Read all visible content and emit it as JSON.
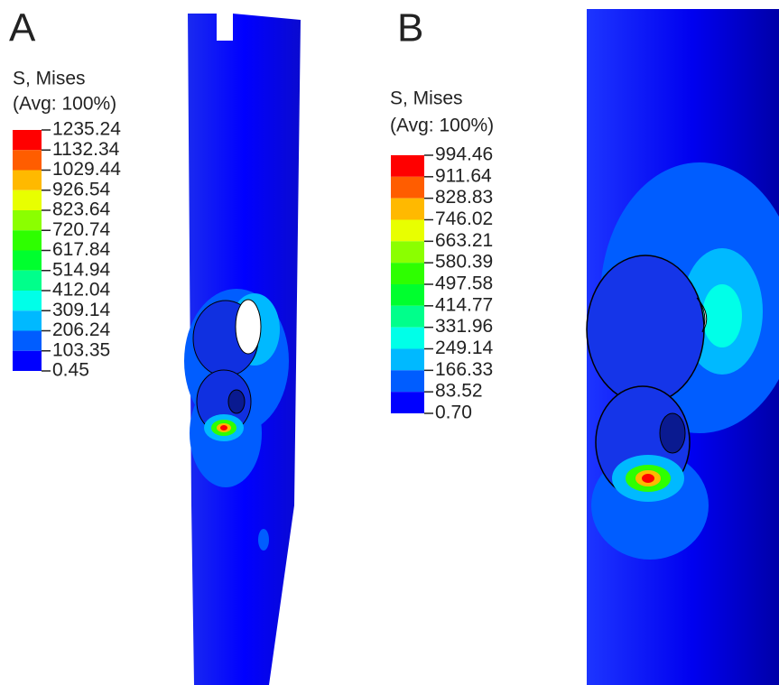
{
  "panels": [
    {
      "label": "A",
      "legend": {
        "title": "S, Mises",
        "subtitle": "(Avg: 100%)",
        "levels": [
          "1235.24",
          "1132.34",
          "1029.44",
          "926.54",
          "823.64",
          "720.74",
          "617.84",
          "514.94",
          "412.04",
          "309.14",
          "206.24",
          "103.35",
          "0.45"
        ]
      }
    },
    {
      "label": "B",
      "legend": {
        "title": "S, Mises",
        "subtitle": "(Avg: 100%)",
        "levels": [
          "994.46",
          "911.64",
          "828.83",
          "746.02",
          "663.21",
          "580.39",
          "497.58",
          "414.77",
          "331.96",
          "249.14",
          "166.33",
          "83.52",
          "0.70"
        ]
      }
    }
  ]
}
